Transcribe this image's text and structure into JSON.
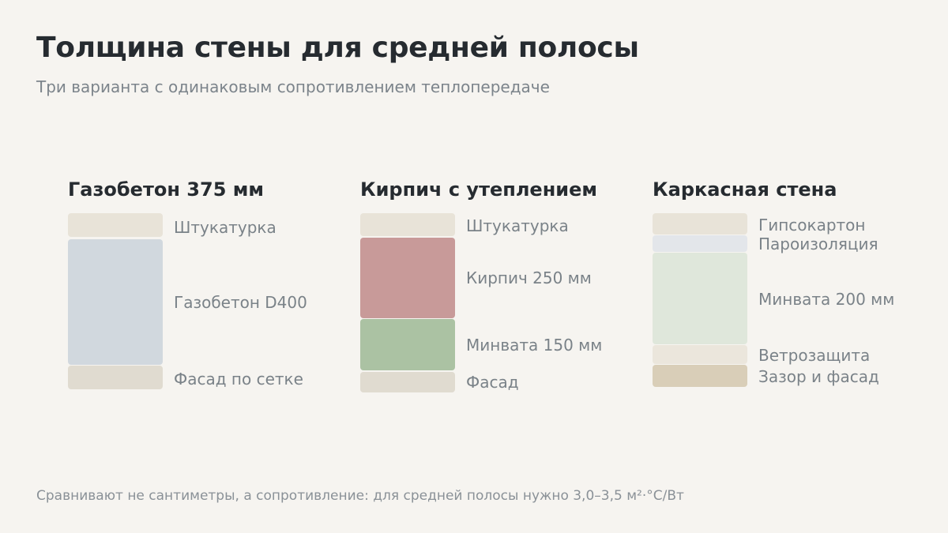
{
  "title": "Толщина стены для средней полосы",
  "subtitle": "Три варианта с одинаковым сопротивлением теплопередаче",
  "columns": [
    {
      "title": "Газобетон 375 мм",
      "layers": [
        {
          "label": "Штукатурка",
          "color": "#e8e3d8"
        },
        {
          "label": "Газобетон D400",
          "color": "#d1d8de"
        },
        {
          "label": "Фасад по сетке",
          "color": "#e0dbd0"
        }
      ]
    },
    {
      "title": "Кирпич с утеплением",
      "layers": [
        {
          "label": "Штукатурка",
          "color": "#e8e3d8"
        },
        {
          "label": "Кирпич 250 мм",
          "color": "#c89a99"
        },
        {
          "label": "Минвата 150 мм",
          "color": "#abc2a3"
        },
        {
          "label": "Фасад",
          "color": "#e0dbd0"
        }
      ]
    },
    {
      "title": "Каркасная стена",
      "layers": [
        {
          "label": "Гипсокартон",
          "color": "#e8e3d8"
        },
        {
          "label": "Пароизоляция",
          "color": "#e3e6ea"
        },
        {
          "label": "Минвата 200 мм",
          "color": "#dfe7db"
        },
        {
          "label": "Ветрозащита",
          "color": "#ebe6dc"
        },
        {
          "label": "Зазор и фасад",
          "color": "#d9ceb8"
        }
      ]
    }
  ],
  "footnote": "Сравнивают не сантиметры, а сопротивление: для средней полосы нужно 3,0–3,5 м²·°С/Вт"
}
